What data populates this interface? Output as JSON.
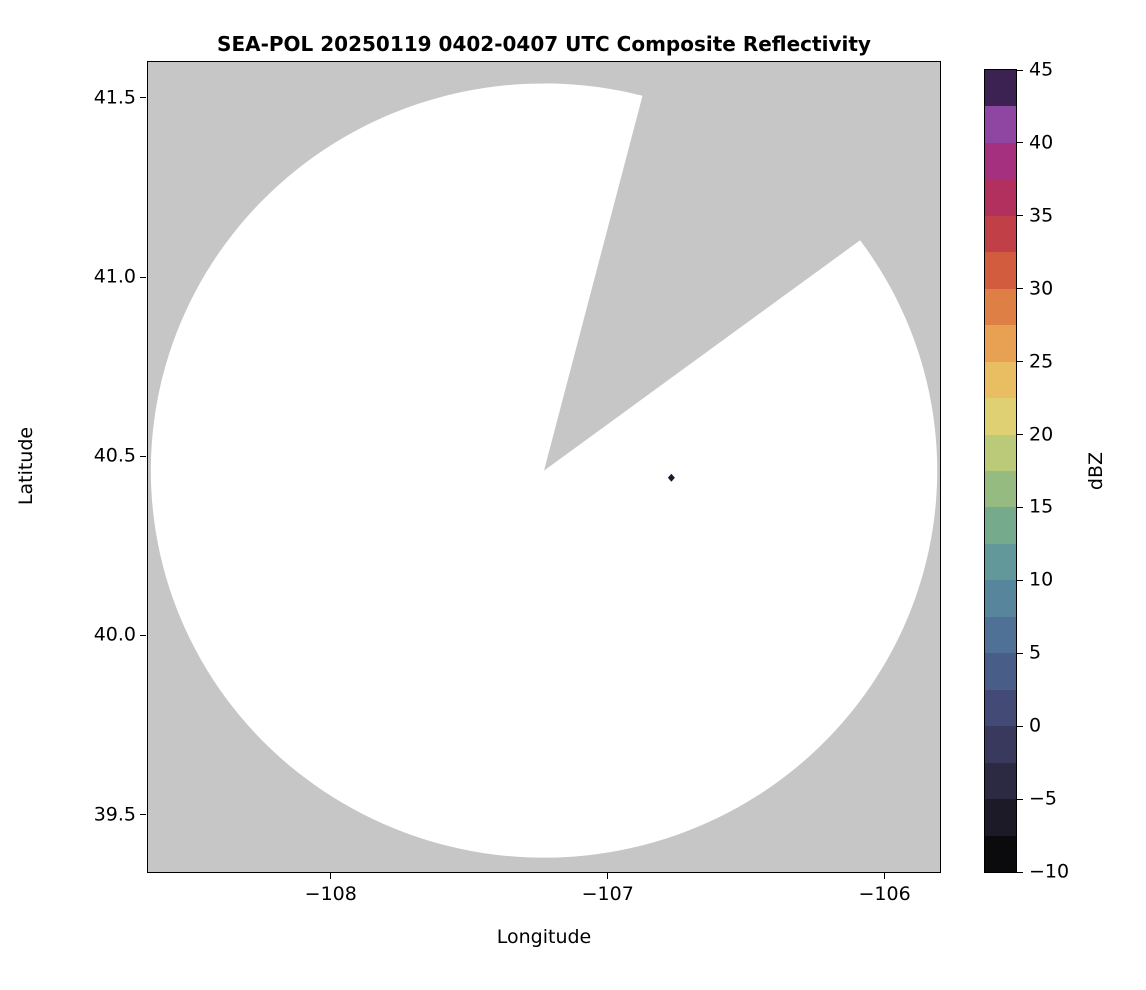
{
  "chart_data": {
    "type": "heatmap",
    "title": "SEA-POL 20250119 0402-0407 UTC Composite Reflectivity",
    "xlabel": "Longitude",
    "ylabel": "Latitude",
    "xlim": [
      -108.66,
      -105.8
    ],
    "ylim": [
      39.34,
      41.6
    ],
    "xticks": [
      -108,
      -107,
      -106
    ],
    "yticks": [
      41.5,
      41.0,
      40.5,
      40.0,
      39.5
    ],
    "grid": false,
    "plot_bg": "#c6c6c6",
    "coverage": {
      "description": "white circular radar scan coverage area with a missing wedge sector (no data) between the given azimuths",
      "center_lon": -107.23,
      "center_lat": 40.46,
      "radius_lon_deg": 1.42,
      "radius_lat_deg": 1.08,
      "missing_sector_azimuth_start_deg": 14.5,
      "missing_sector_azimuth_end_deg": 53.5,
      "fill": "#ffffff"
    },
    "points": [
      {
        "lon": -106.77,
        "lat": 40.44,
        "dbz_color": "#1e1b2e",
        "label": "isolated reflectivity pixel"
      }
    ],
    "colorbar": {
      "label": "dBZ",
      "min": -10,
      "max": 45,
      "ticks": [
        45,
        40,
        35,
        30,
        25,
        20,
        15,
        10,
        5,
        0,
        -5,
        -10
      ],
      "colors_bottom_to_top": [
        "#0b0b0e",
        "#1c1a27",
        "#2c2a43",
        "#39395d",
        "#434a75",
        "#495d89",
        "#4e7195",
        "#56859c",
        "#62989a",
        "#76aa8d",
        "#95bb80",
        "#bbca79",
        "#ded073",
        "#e9be63",
        "#e8a153",
        "#de7f46",
        "#d15c3e",
        "#c14048",
        "#b1305e",
        "#a5307f",
        "#8f45a2",
        "#3b2253"
      ]
    }
  }
}
